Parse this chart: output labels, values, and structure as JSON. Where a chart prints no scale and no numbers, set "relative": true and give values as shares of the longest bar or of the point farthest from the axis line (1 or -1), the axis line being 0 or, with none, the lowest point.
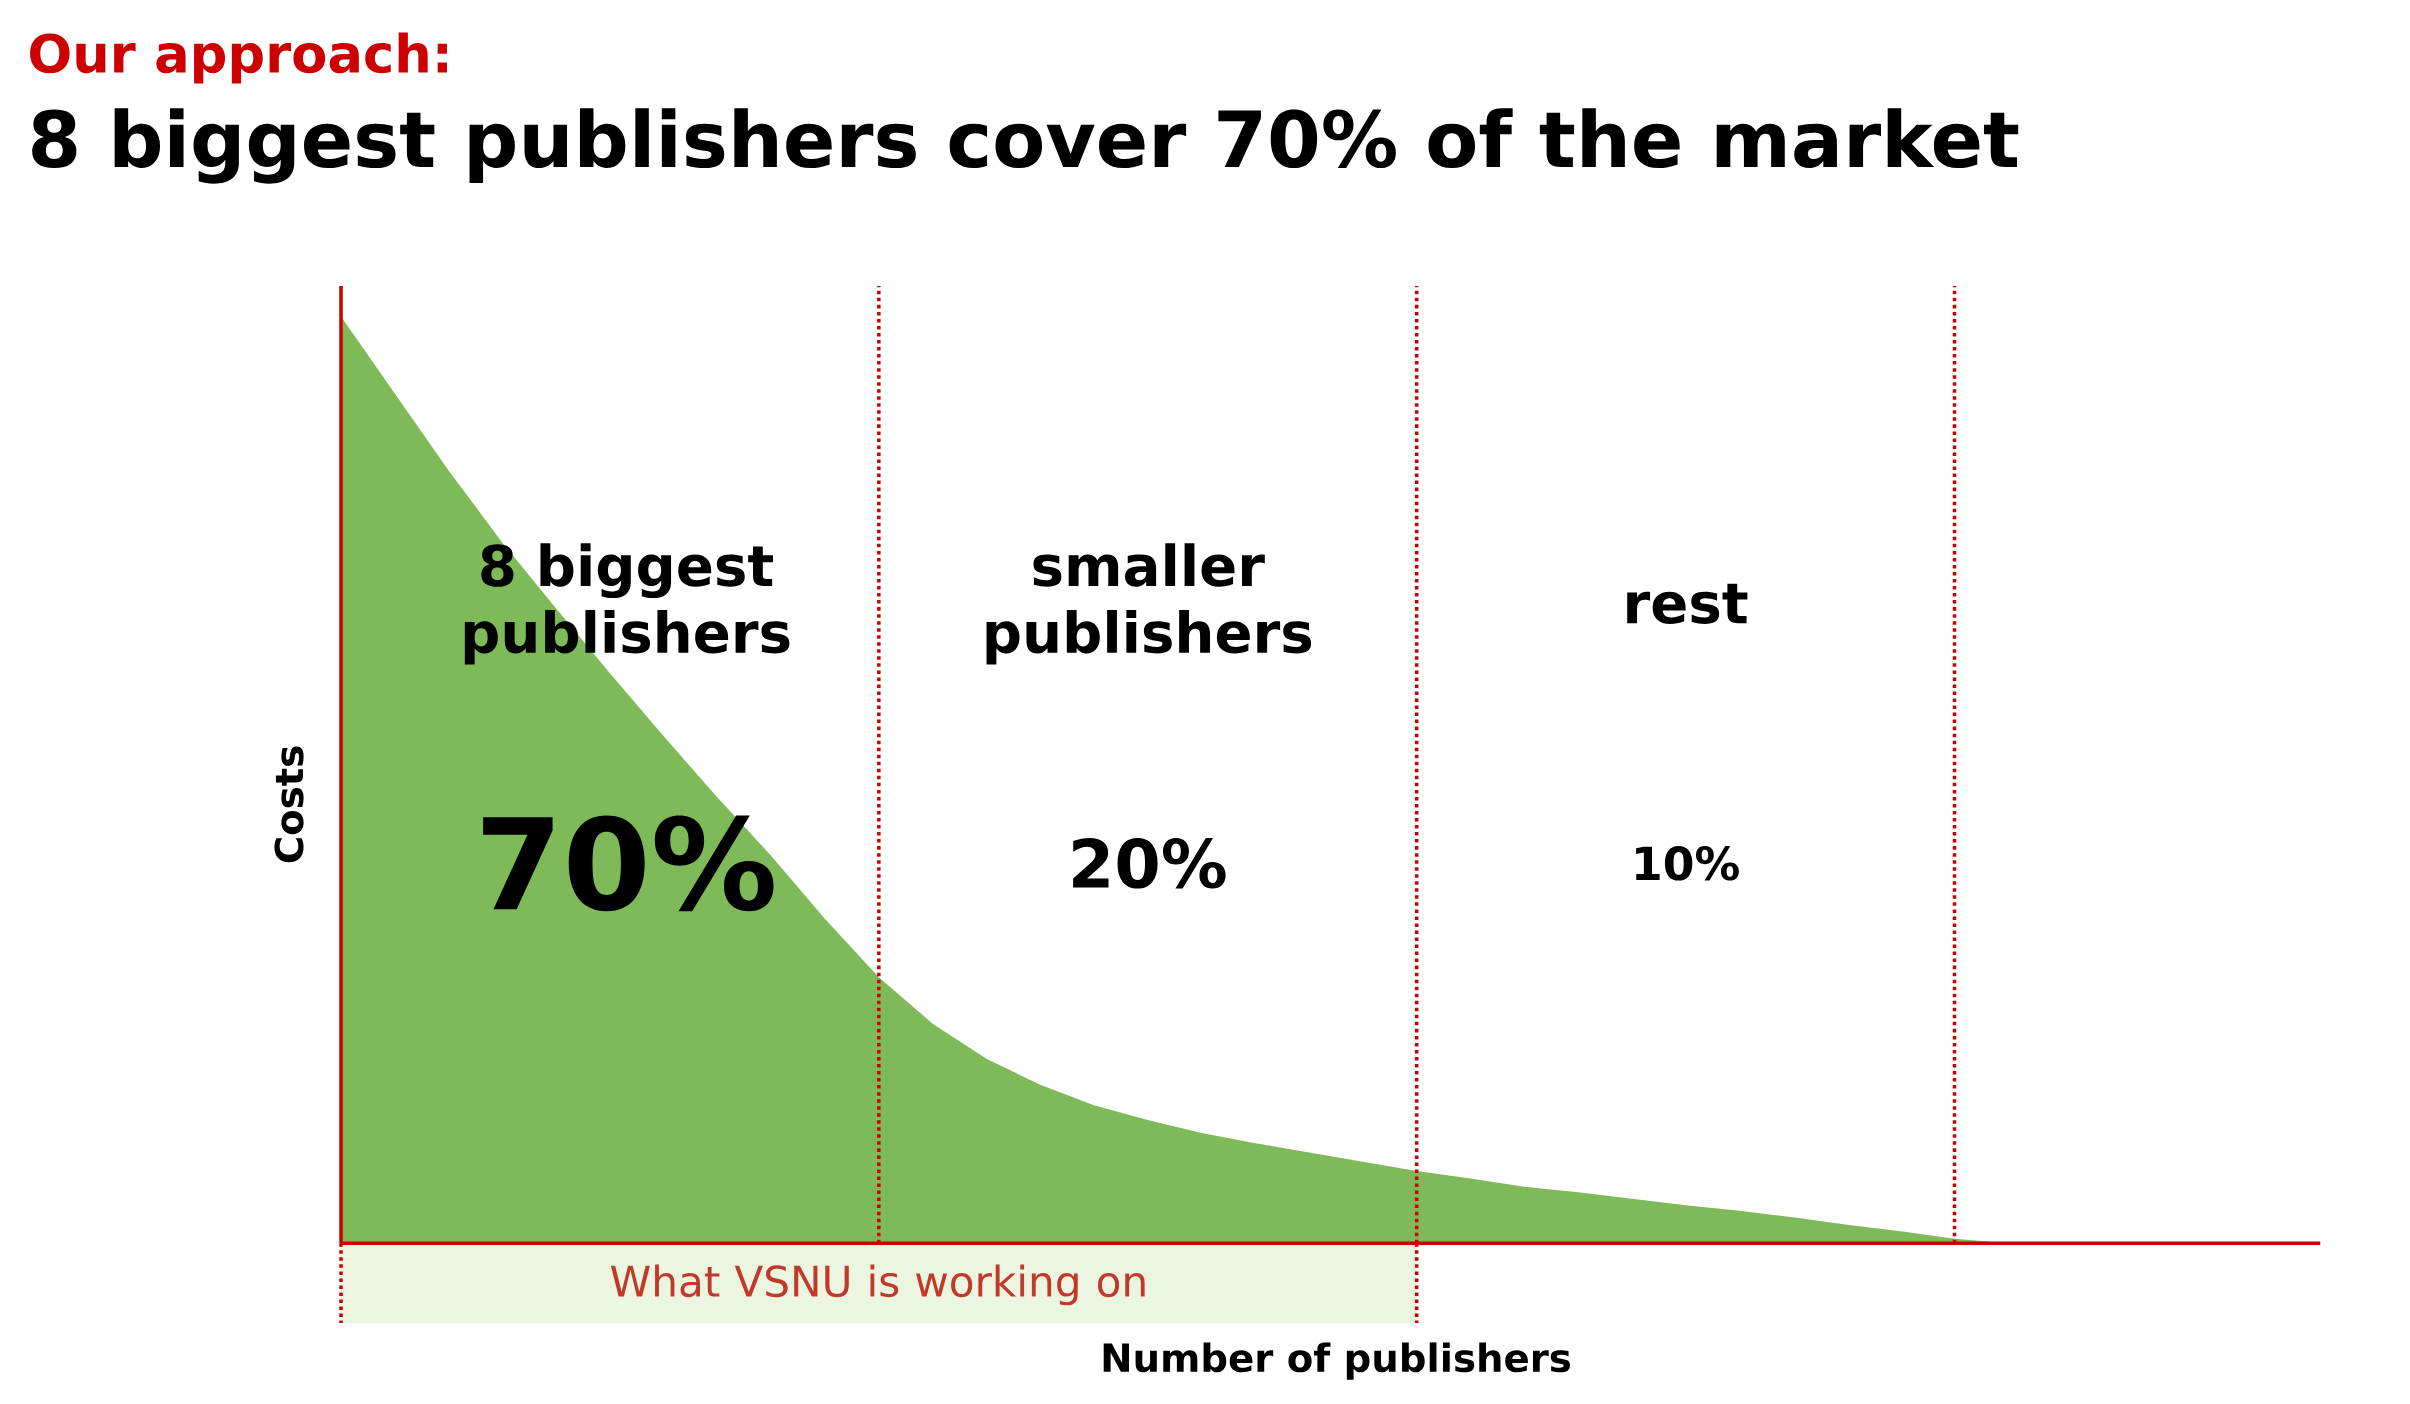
{
  "chart_data": {
    "type": "area",
    "subtitle": "Our approach:",
    "title": "8 biggest publishers cover 70% of the market",
    "xlabel": "Number of publishers",
    "ylabel": "Costs",
    "relative": true,
    "categories": [
      null,
      null,
      null,
      null,
      null,
      null,
      null,
      null,
      null,
      null,
      null,
      null,
      null,
      null,
      null,
      null,
      null,
      null,
      null,
      null,
      null,
      null,
      null,
      null,
      null,
      null,
      null,
      null,
      null,
      null,
      null,
      null,
      null,
      null,
      null,
      null,
      null,
      null
    ],
    "values": [
      1.0,
      0.917,
      0.834,
      0.756,
      0.685,
      0.615,
      0.547,
      0.481,
      0.418,
      0.35,
      0.287,
      0.237,
      0.199,
      0.171,
      0.149,
      0.133,
      0.119,
      0.108,
      0.098,
      0.088,
      0.078,
      0.07,
      0.061,
      0.055,
      0.048,
      0.041,
      0.035,
      0.028,
      0.02,
      0.013,
      0.005,
      0,
      0,
      0,
      0,
      0,
      0,
      0
    ],
    "color": "#7fba58",
    "grid": "x",
    "annotations": [
      "8 biggest publishers",
      "70%",
      "smaller publishers",
      "20%",
      "rest",
      "10%",
      "What VSNU is working on"
    ]
  }
}
